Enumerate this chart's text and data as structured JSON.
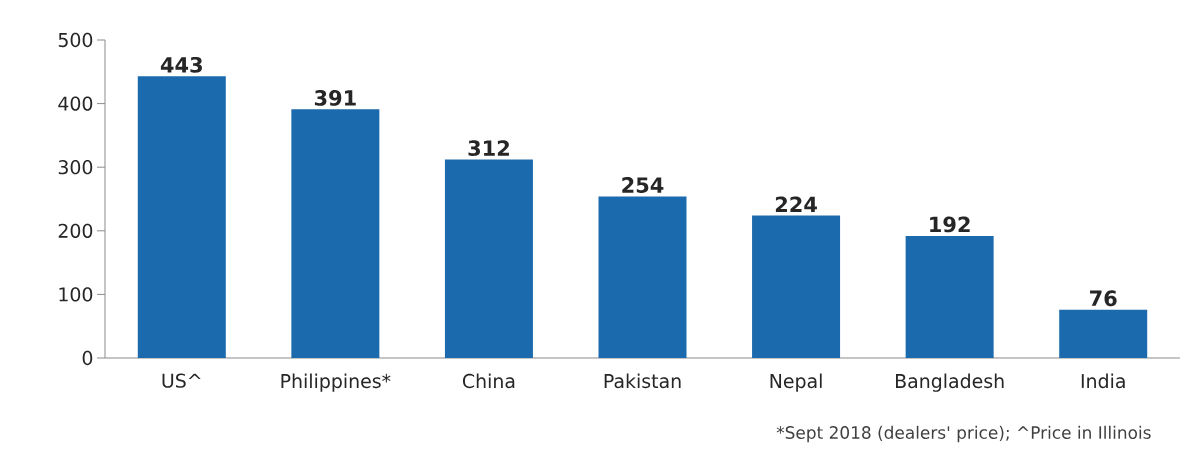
{
  "chart_data": {
    "type": "bar",
    "categories": [
      "US^",
      "Philippines*",
      "China",
      "Pakistan",
      "Nepal",
      "Bangladesh",
      "India"
    ],
    "values": [
      443,
      391,
      312,
      254,
      224,
      192,
      76
    ],
    "color": "#1a6aad",
    "ylim": [
      0,
      500
    ],
    "yticks": [
      0,
      100,
      200,
      300,
      400,
      500
    ],
    "grid": false,
    "data_labels": true,
    "annotations": [
      "*Sept 2018 (dealers' price);  ^Price in Illinois"
    ]
  }
}
